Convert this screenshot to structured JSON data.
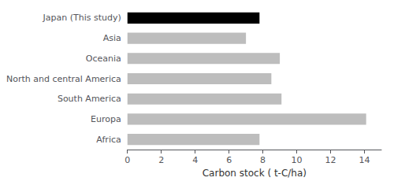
{
  "chart_data": {
    "type": "bar",
    "orientation": "horizontal",
    "categories": [
      "Japan (This study)",
      "Asia",
      "Oceania",
      "North and central America",
      "South America",
      "Europa",
      "Africa"
    ],
    "values": [
      7.8,
      7.0,
      9.0,
      8.5,
      9.1,
      14.1,
      7.8
    ],
    "colors": [
      "#000000",
      "#bdbdbd",
      "#bdbdbd",
      "#bdbdbd",
      "#bdbdbd",
      "#bdbdbd",
      "#bdbdbd"
    ],
    "xlabel": "Carbon stock ( t-C/ha)",
    "xlim": [
      0,
      15
    ],
    "xticks": [
      0,
      2,
      4,
      6,
      8,
      10,
      12,
      14
    ],
    "grid": false
  }
}
